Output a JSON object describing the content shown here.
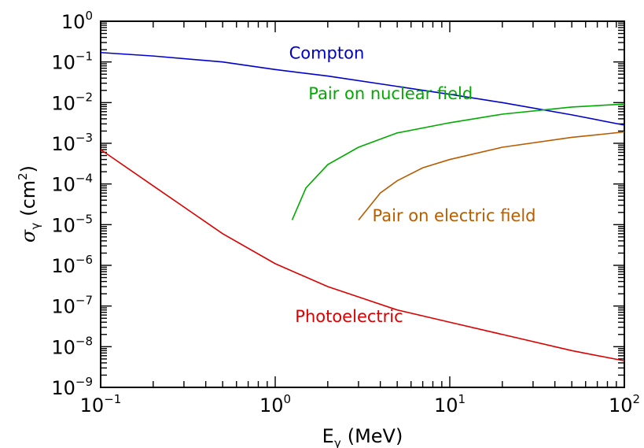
{
  "chart_data": {
    "type": "line",
    "title": "",
    "xlabel": {
      "symbol": "E",
      "subscript": "γ",
      "unit": "(MeV)"
    },
    "ylabel": {
      "symbol": "σ",
      "subscript": "γ",
      "unit_prefix": "(cm",
      "unit_exponent": "2",
      "unit_suffix": ")"
    },
    "x_scale": "log",
    "y_scale": "log",
    "xlim": [
      0.1,
      100
    ],
    "ylim": [
      1e-09,
      1
    ],
    "x_ticks": [
      {
        "value": 0.1,
        "base": "10",
        "exponent": "−1"
      },
      {
        "value": 1,
        "base": "10",
        "exponent": "0"
      },
      {
        "value": 10,
        "base": "10",
        "exponent": "1"
      },
      {
        "value": 100,
        "base": "10",
        "exponent": "2"
      }
    ],
    "y_ticks": [
      {
        "value": 1e-09,
        "base": "10",
        "exponent": "−9"
      },
      {
        "value": 1e-08,
        "base": "10",
        "exponent": "−8"
      },
      {
        "value": 1e-07,
        "base": "10",
        "exponent": "−7"
      },
      {
        "value": 1e-06,
        "base": "10",
        "exponent": "−6"
      },
      {
        "value": 1e-05,
        "base": "10",
        "exponent": "−5"
      },
      {
        "value": 0.0001,
        "base": "10",
        "exponent": "−4"
      },
      {
        "value": 0.001,
        "base": "10",
        "exponent": "−3"
      },
      {
        "value": 0.01,
        "base": "10",
        "exponent": "−2"
      },
      {
        "value": 0.1,
        "base": "10",
        "exponent": "−1"
      },
      {
        "value": 1,
        "base": "10",
        "exponent": "0"
      }
    ],
    "grid": false,
    "legend": "inline labels",
    "series": [
      {
        "name": "Compton",
        "color": "#0000cc",
        "label_at": {
          "x": 1.2,
          "y": 0.12
        },
        "points": [
          [
            0.1,
            0.17
          ],
          [
            0.2,
            0.14
          ],
          [
            0.5,
            0.1
          ],
          [
            1,
            0.065
          ],
          [
            2,
            0.045
          ],
          [
            5,
            0.025
          ],
          [
            10,
            0.016
          ],
          [
            20,
            0.01
          ],
          [
            50,
            0.005
          ],
          [
            100,
            0.0028
          ]
        ]
      },
      {
        "name": "Pair on nuclear field",
        "color": "#00aa00",
        "label_at": {
          "x": 1.55,
          "y": 0.012
        },
        "points": [
          [
            1.25,
            1.3e-05
          ],
          [
            1.5,
            8e-05
          ],
          [
            2,
            0.0003
          ],
          [
            3,
            0.0008
          ],
          [
            5,
            0.0018
          ],
          [
            10,
            0.0032
          ],
          [
            20,
            0.0052
          ],
          [
            50,
            0.0078
          ],
          [
            100,
            0.0092
          ]
        ]
      },
      {
        "name": "Pair on electric field",
        "color": "#b85c00",
        "label_at": {
          "x": 3.6,
          "y": 1.2e-05
        },
        "points": [
          [
            3,
            1.3e-05
          ],
          [
            4,
            6e-05
          ],
          [
            5,
            0.00012
          ],
          [
            7,
            0.00025
          ],
          [
            10,
            0.0004
          ],
          [
            20,
            0.0008
          ],
          [
            50,
            0.0014
          ],
          [
            100,
            0.0019
          ]
        ]
      },
      {
        "name": "Photoelectric",
        "color": "#dd0000",
        "label_at": {
          "x": 1.3,
          "y": 4e-08
        },
        "points": [
          [
            0.1,
            0.0007
          ],
          [
            0.2,
            9e-05
          ],
          [
            0.5,
            6e-06
          ],
          [
            1,
            1.1e-06
          ],
          [
            2,
            3e-07
          ],
          [
            5,
            8e-08
          ],
          [
            10,
            4e-08
          ],
          [
            20,
            2e-08
          ],
          [
            50,
            8e-09
          ],
          [
            100,
            4.5e-09
          ]
        ]
      }
    ]
  }
}
